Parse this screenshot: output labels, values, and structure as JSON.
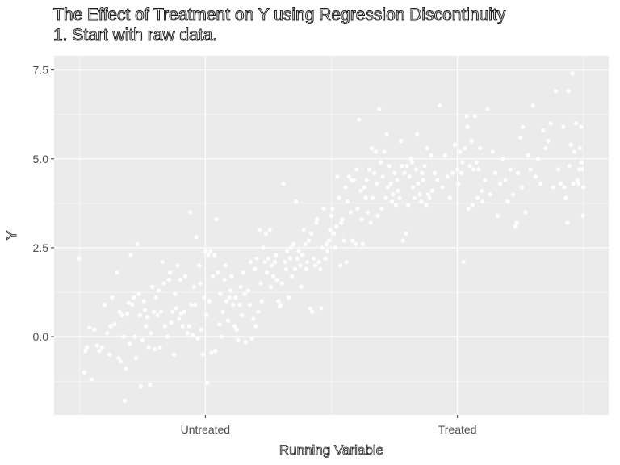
{
  "chart_data": {
    "type": "scatter",
    "title": "The Effect of Treatment on Y using Regression Discontinuity",
    "subtitle": "1. Start with raw data.",
    "xlabel": "Running Variable",
    "ylabel": "Y",
    "x_tick_labels": [
      "Untreated",
      "Treated"
    ],
    "y_ticks": [
      0.0,
      2.5,
      5.0,
      7.5
    ],
    "y_tick_labels": [
      "0.0",
      "2.5",
      "5.0",
      "7.5"
    ],
    "ylim": [
      -2.2,
      7.9
    ],
    "xlim": [
      -0.05,
      1.05
    ],
    "x_tick_positions": [
      0.25,
      0.75
    ],
    "grid": true,
    "point_color": "#ffffff",
    "panel_color": "#ebebeb",
    "grid_color": "#ffffff",
    "points": [
      [
        0.0,
        2.2
      ],
      [
        0.01,
        -1.0
      ],
      [
        0.012,
        -0.4
      ],
      [
        0.015,
        -0.3
      ],
      [
        0.02,
        0.25
      ],
      [
        0.025,
        -1.2
      ],
      [
        0.03,
        0.2
      ],
      [
        0.035,
        -0.25
      ],
      [
        0.04,
        -0.4
      ],
      [
        0.045,
        -0.3
      ],
      [
        0.05,
        0.9
      ],
      [
        0.055,
        0.1
      ],
      [
        0.06,
        -0.5
      ],
      [
        0.062,
        0.3
      ],
      [
        0.065,
        1.1
      ],
      [
        0.07,
        0.35
      ],
      [
        0.075,
        1.8
      ],
      [
        0.078,
        -0.6
      ],
      [
        0.08,
        0.7
      ],
      [
        0.082,
        -0.7
      ],
      [
        0.085,
        0.6
      ],
      [
        0.088,
        0.0
      ],
      [
        0.09,
        -1.8
      ],
      [
        0.092,
        -0.9
      ],
      [
        0.095,
        0.65
      ],
      [
        0.098,
        0.95
      ],
      [
        0.1,
        -0.2
      ],
      [
        0.102,
        2.3
      ],
      [
        0.105,
        0.9
      ],
      [
        0.108,
        1.1
      ],
      [
        0.11,
        0.0
      ],
      [
        0.112,
        -0.6
      ],
      [
        0.115,
        2.6
      ],
      [
        0.118,
        1.2
      ],
      [
        0.12,
        0.6
      ],
      [
        0.122,
        -1.4
      ],
      [
        0.125,
        -0.1
      ],
      [
        0.128,
        1.0
      ],
      [
        0.13,
        0.75
      ],
      [
        0.132,
        0.3
      ],
      [
        0.135,
        0.55
      ],
      [
        0.138,
        -0.3
      ],
      [
        0.14,
        -1.35
      ],
      [
        0.142,
        0.1
      ],
      [
        0.145,
        1.4
      ],
      [
        0.148,
        0.7
      ],
      [
        0.15,
        -0.35
      ],
      [
        0.152,
        1.1
      ],
      [
        0.155,
        0.6
      ],
      [
        0.158,
        1.3
      ],
      [
        0.16,
        -0.3
      ],
      [
        0.162,
        0.7
      ],
      [
        0.165,
        2.1
      ],
      [
        0.168,
        1.5
      ],
      [
        0.17,
        0.3
      ],
      [
        0.175,
        0.0
      ],
      [
        0.178,
        1.6
      ],
      [
        0.18,
        1.8
      ],
      [
        0.182,
        0.4
      ],
      [
        0.185,
        0.7
      ],
      [
        0.188,
        -0.5
      ],
      [
        0.19,
        1.2
      ],
      [
        0.192,
        0.8
      ],
      [
        0.195,
        2.0
      ],
      [
        0.198,
        0.5
      ],
      [
        0.2,
        1.6
      ],
      [
        0.202,
        0.65
      ],
      [
        0.205,
        0.3
      ],
      [
        0.208,
        0.7
      ],
      [
        0.21,
        1.7
      ],
      [
        0.215,
        0.1
      ],
      [
        0.218,
        0.3
      ],
      [
        0.22,
        3.5
      ],
      [
        0.222,
        0.9
      ],
      [
        0.225,
        0.05
      ],
      [
        0.228,
        1.4
      ],
      [
        0.23,
        0.9
      ],
      [
        0.232,
        2.8
      ],
      [
        0.235,
        -0.05
      ],
      [
        0.238,
        2.0
      ],
      [
        0.24,
        1.5
      ],
      [
        0.242,
        0.2
      ],
      [
        0.245,
        -0.5
      ],
      [
        0.248,
        1.1
      ],
      [
        0.25,
        2.4
      ],
      [
        0.252,
        0.6
      ],
      [
        0.254,
        -1.3
      ],
      [
        0.256,
        2.3
      ],
      [
        0.258,
        1.0
      ],
      [
        0.26,
        2.4
      ],
      [
        0.262,
        -0.45
      ],
      [
        0.265,
        1.7
      ],
      [
        0.268,
        2.3
      ],
      [
        0.27,
        -0.4
      ],
      [
        0.272,
        3.3
      ],
      [
        0.275,
        1.8
      ],
      [
        0.278,
        0.35
      ],
      [
        0.28,
        1.2
      ],
      [
        0.282,
        0.0
      ],
      [
        0.285,
        0.7
      ],
      [
        0.288,
        1.6
      ],
      [
        0.29,
        2.0
      ],
      [
        0.292,
        1.0
      ],
      [
        0.295,
        0.45
      ],
      [
        0.298,
        1.1
      ],
      [
        0.3,
        1.3
      ],
      [
        0.302,
        1.7
      ],
      [
        0.305,
        0.9
      ],
      [
        0.308,
        0.3
      ],
      [
        0.31,
        1.1
      ],
      [
        0.312,
        0.2
      ],
      [
        0.315,
        -0.1
      ],
      [
        0.318,
        0.9
      ],
      [
        0.32,
        1.4
      ],
      [
        0.322,
        0.6
      ],
      [
        0.325,
        1.8
      ],
      [
        0.328,
        1.2
      ],
      [
        0.33,
        -0.15
      ],
      [
        0.335,
        1.3
      ],
      [
        0.338,
        0.9
      ],
      [
        0.34,
        2.1
      ],
      [
        0.342,
        -0.05
      ],
      [
        0.345,
        0.5
      ],
      [
        0.348,
        1.9
      ],
      [
        0.35,
        0.3
      ],
      [
        0.352,
        2.2
      ],
      [
        0.355,
        0.7
      ],
      [
        0.358,
        3.0
      ],
      [
        0.36,
        1.5
      ],
      [
        0.362,
        1.0
      ],
      [
        0.365,
        2.5
      ],
      [
        0.368,
        2.1
      ],
      [
        0.37,
        2.9
      ],
      [
        0.372,
        1.8
      ],
      [
        0.375,
        2.2
      ],
      [
        0.378,
        3.0
      ],
      [
        0.38,
        1.4
      ],
      [
        0.382,
        2.0
      ],
      [
        0.385,
        1.7
      ],
      [
        0.388,
        2.1
      ],
      [
        0.39,
        2.3
      ],
      [
        0.392,
        1.6
      ],
      [
        0.395,
        1.0
      ],
      [
        0.398,
        0.85
      ],
      [
        0.4,
        0.9
      ],
      [
        0.402,
        1.5
      ],
      [
        0.405,
        4.3
      ],
      [
        0.408,
        2.1
      ],
      [
        0.41,
        1.9
      ],
      [
        0.412,
        2.4
      ],
      [
        0.415,
        1.1
      ],
      [
        0.418,
        2.2
      ],
      [
        0.42,
        2.5
      ],
      [
        0.422,
        1.7
      ],
      [
        0.425,
        2.6
      ],
      [
        0.428,
        1.9
      ],
      [
        0.43,
        3.8
      ],
      [
        0.432,
        2.2
      ],
      [
        0.435,
        2.4
      ],
      [
        0.438,
        2.0
      ],
      [
        0.44,
        1.4
      ],
      [
        0.442,
        2.3
      ],
      [
        0.445,
        3.0
      ],
      [
        0.448,
        2.6
      ],
      [
        0.45,
        1.9
      ],
      [
        0.452,
        2.1
      ],
      [
        0.455,
        2.7
      ],
      [
        0.458,
        0.8
      ],
      [
        0.46,
        2.9
      ],
      [
        0.462,
        0.7
      ],
      [
        0.465,
        2.2
      ],
      [
        0.468,
        2.0
      ],
      [
        0.47,
        3.2
      ],
      [
        0.472,
        3.3
      ],
      [
        0.475,
        2.1
      ],
      [
        0.478,
        1.9
      ],
      [
        0.48,
        0.8
      ],
      [
        0.482,
        2.5
      ],
      [
        0.485,
        3.6
      ],
      [
        0.488,
        2.2
      ],
      [
        0.49,
        2.6
      ],
      [
        0.492,
        2.4
      ],
      [
        0.495,
        2.7
      ],
      [
        0.498,
        3.0
      ],
      [
        0.5,
        3.4
      ],
      [
        0.502,
        3.6
      ],
      [
        0.505,
        2.9
      ],
      [
        0.508,
        2.5
      ],
      [
        0.51,
        3.1
      ],
      [
        0.512,
        4.5
      ],
      [
        0.515,
        3.9
      ],
      [
        0.518,
        2.0
      ],
      [
        0.52,
        3.2
      ],
      [
        0.522,
        3.3
      ],
      [
        0.525,
        2.7
      ],
      [
        0.528,
        4.2
      ],
      [
        0.53,
        2.1
      ],
      [
        0.532,
        3.8
      ],
      [
        0.535,
        4.5
      ],
      [
        0.538,
        3.5
      ],
      [
        0.54,
        4.4
      ],
      [
        0.542,
        2.7
      ],
      [
        0.545,
        4.4
      ],
      [
        0.548,
        2.6
      ],
      [
        0.55,
        4.7
      ],
      [
        0.552,
        3.6
      ],
      [
        0.555,
        6.1
      ],
      [
        0.558,
        4.1
      ],
      [
        0.56,
        3.3
      ],
      [
        0.562,
        2.6
      ],
      [
        0.565,
        4.2
      ],
      [
        0.568,
        3.9
      ],
      [
        0.57,
        4.4
      ],
      [
        0.572,
        3.5
      ],
      [
        0.575,
        4.7
      ],
      [
        0.578,
        3.2
      ],
      [
        0.58,
        5.3
      ],
      [
        0.582,
        3.9
      ],
      [
        0.585,
        4.6
      ],
      [
        0.588,
        5.2
      ],
      [
        0.59,
        4.3
      ],
      [
        0.592,
        3.4
      ],
      [
        0.595,
        6.4
      ],
      [
        0.598,
        4.9
      ],
      [
        0.6,
        3.6
      ],
      [
        0.602,
        4.5
      ],
      [
        0.605,
        5.2
      ],
      [
        0.608,
        3.9
      ],
      [
        0.61,
        5.7
      ],
      [
        0.612,
        4.2
      ],
      [
        0.615,
        4.8
      ],
      [
        0.618,
        4.3
      ],
      [
        0.62,
        3.8
      ],
      [
        0.622,
        4.0
      ],
      [
        0.625,
        4.6
      ],
      [
        0.628,
        3.7
      ],
      [
        0.63,
        4.4
      ],
      [
        0.632,
        4.1
      ],
      [
        0.635,
        3.9
      ],
      [
        0.638,
        5.5
      ],
      [
        0.64,
        4.8
      ],
      [
        0.642,
        2.7
      ],
      [
        0.645,
        4.6
      ],
      [
        0.648,
        2.9
      ],
      [
        0.65,
        4.8
      ],
      [
        0.652,
        3.7
      ],
      [
        0.655,
        4.5
      ],
      [
        0.658,
        5.0
      ],
      [
        0.66,
        4.9
      ],
      [
        0.662,
        4.2
      ],
      [
        0.665,
        3.9
      ],
      [
        0.668,
        4.7
      ],
      [
        0.67,
        5.7
      ],
      [
        0.672,
        4.3
      ],
      [
        0.675,
        4.0
      ],
      [
        0.678,
        3.8
      ],
      [
        0.68,
        4.6
      ],
      [
        0.682,
        4.4
      ],
      [
        0.685,
        4.8
      ],
      [
        0.688,
        3.7
      ],
      [
        0.69,
        5.3
      ],
      [
        0.692,
        4.0
      ],
      [
        0.695,
        3.9
      ],
      [
        0.698,
        5.1
      ],
      [
        0.7,
        4.1
      ],
      [
        0.705,
        4.6
      ],
      [
        0.71,
        4.4
      ],
      [
        0.715,
        6.5
      ],
      [
        0.72,
        4.2
      ],
      [
        0.725,
        5.1
      ],
      [
        0.73,
        4.5
      ],
      [
        0.735,
        3.9
      ],
      [
        0.74,
        4.6
      ],
      [
        0.745,
        5.4
      ],
      [
        0.75,
        4.7
      ],
      [
        0.752,
        4.3
      ],
      [
        0.755,
        5.2
      ],
      [
        0.758,
        4.6
      ],
      [
        0.76,
        4.9
      ],
      [
        0.762,
        2.1
      ],
      [
        0.765,
        5.3
      ],
      [
        0.768,
        6.2
      ],
      [
        0.77,
        5.9
      ],
      [
        0.772,
        3.6
      ],
      [
        0.775,
        4.8
      ],
      [
        0.778,
        5.5
      ],
      [
        0.78,
        3.7
      ],
      [
        0.782,
        4.7
      ],
      [
        0.785,
        6.2
      ],
      [
        0.788,
        4.9
      ],
      [
        0.79,
        3.9
      ],
      [
        0.792,
        4.7
      ],
      [
        0.795,
        5.3
      ],
      [
        0.798,
        4.1
      ],
      [
        0.8,
        3.8
      ],
      [
        0.805,
        4.4
      ],
      [
        0.81,
        6.4
      ],
      [
        0.815,
        4.0
      ],
      [
        0.82,
        5.2
      ],
      [
        0.825,
        4.6
      ],
      [
        0.83,
        3.4
      ],
      [
        0.835,
        4.3
      ],
      [
        0.84,
        5.0
      ],
      [
        0.845,
        4.4
      ],
      [
        0.85,
        3.8
      ],
      [
        0.855,
        4.7
      ],
      [
        0.86,
        4.0
      ],
      [
        0.865,
        3.1
      ],
      [
        0.868,
        3.2
      ],
      [
        0.87,
        4.6
      ],
      [
        0.875,
        5.6
      ],
      [
        0.878,
        4.2
      ],
      [
        0.88,
        5.9
      ],
      [
        0.885,
        3.5
      ],
      [
        0.89,
        5.1
      ],
      [
        0.895,
        4.7
      ],
      [
        0.9,
        6.5
      ],
      [
        0.905,
        4.5
      ],
      [
        0.91,
        5.0
      ],
      [
        0.915,
        4.3
      ],
      [
        0.92,
        5.8
      ],
      [
        0.925,
        5.3
      ],
      [
        0.93,
        5.5
      ],
      [
        0.935,
        6.0
      ],
      [
        0.94,
        4.2
      ],
      [
        0.945,
        6.9
      ],
      [
        0.95,
        4.7
      ],
      [
        0.955,
        4.3
      ],
      [
        0.96,
        5.9
      ],
      [
        0.962,
        4.2
      ],
      [
        0.965,
        3.9
      ],
      [
        0.968,
        3.2
      ],
      [
        0.97,
        6.9
      ],
      [
        0.972,
        4.8
      ],
      [
        0.975,
        5.4
      ],
      [
        0.978,
        7.4
      ],
      [
        0.98,
        4.3
      ],
      [
        0.982,
        5.2
      ],
      [
        0.985,
        6.0
      ],
      [
        0.988,
        4.4
      ],
      [
        0.99,
        4.3
      ],
      [
        0.992,
        4.7
      ],
      [
        0.995,
        5.9
      ],
      [
        0.997,
        4.7
      ],
      [
        0.999,
        3.4
      ],
      [
        1.0,
        4.2
      ],
      [
        0.996,
        4.9
      ],
      [
        0.993,
        5.3
      ]
    ]
  }
}
